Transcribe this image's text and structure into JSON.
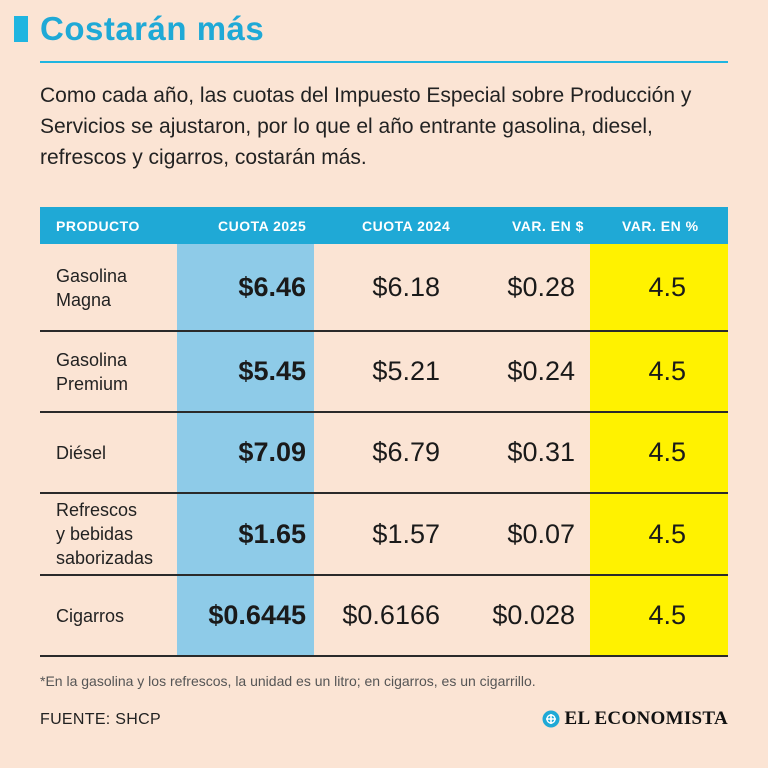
{
  "title": "Costarán más",
  "intro": "Como cada año, las cuotas del Impuesto Especial sobre Producción y Servicios se ajustaron, por lo que el año entrante gasolina, diesel, refrescos y cigarros, costarán más.",
  "colors": {
    "accent": "#1fa9d6",
    "background": "#fbe4d4",
    "highlight_2025": "#8ecbe8",
    "highlight_pct": "#fff200"
  },
  "chart_data": {
    "type": "table",
    "columns": [
      "PRODUCTO",
      "CUOTA 2025",
      "CUOTA 2024",
      "VAR. EN $",
      "VAR. EN %"
    ],
    "rows": [
      {
        "producto": [
          "Gasolina",
          "Magna"
        ],
        "cuota_2025": "$6.46",
        "cuota_2024": "$6.18",
        "var_pesos": "$0.28",
        "var_pct": "4.5"
      },
      {
        "producto": [
          "Gasolina",
          "Premium"
        ],
        "cuota_2025": "$5.45",
        "cuota_2024": "$5.21",
        "var_pesos": "$0.24",
        "var_pct": "4.5"
      },
      {
        "producto": [
          "Diésel"
        ],
        "cuota_2025": "$7.09",
        "cuota_2024": "$6.79",
        "var_pesos": "$0.31",
        "var_pct": "4.5"
      },
      {
        "producto": [
          "Refrescos",
          "y bebidas",
          "saborizadas"
        ],
        "cuota_2025": "$1.65",
        "cuota_2024": "$1.57",
        "var_pesos": "$0.07",
        "var_pct": "4.5"
      },
      {
        "producto": [
          "Cigarros"
        ],
        "cuota_2025": "$0.6445",
        "cuota_2024": "$0.6166",
        "var_pesos": "$0.028",
        "var_pct": "4.5"
      }
    ]
  },
  "note": "*En la gasolina y los refrescos, la unidad es un litro; en cigarros, es un cigarrillo.",
  "source": "FUENTE: SHCP",
  "brand": {
    "name": "EL ECONOMISTA",
    "icon": "el-economista-logo"
  }
}
